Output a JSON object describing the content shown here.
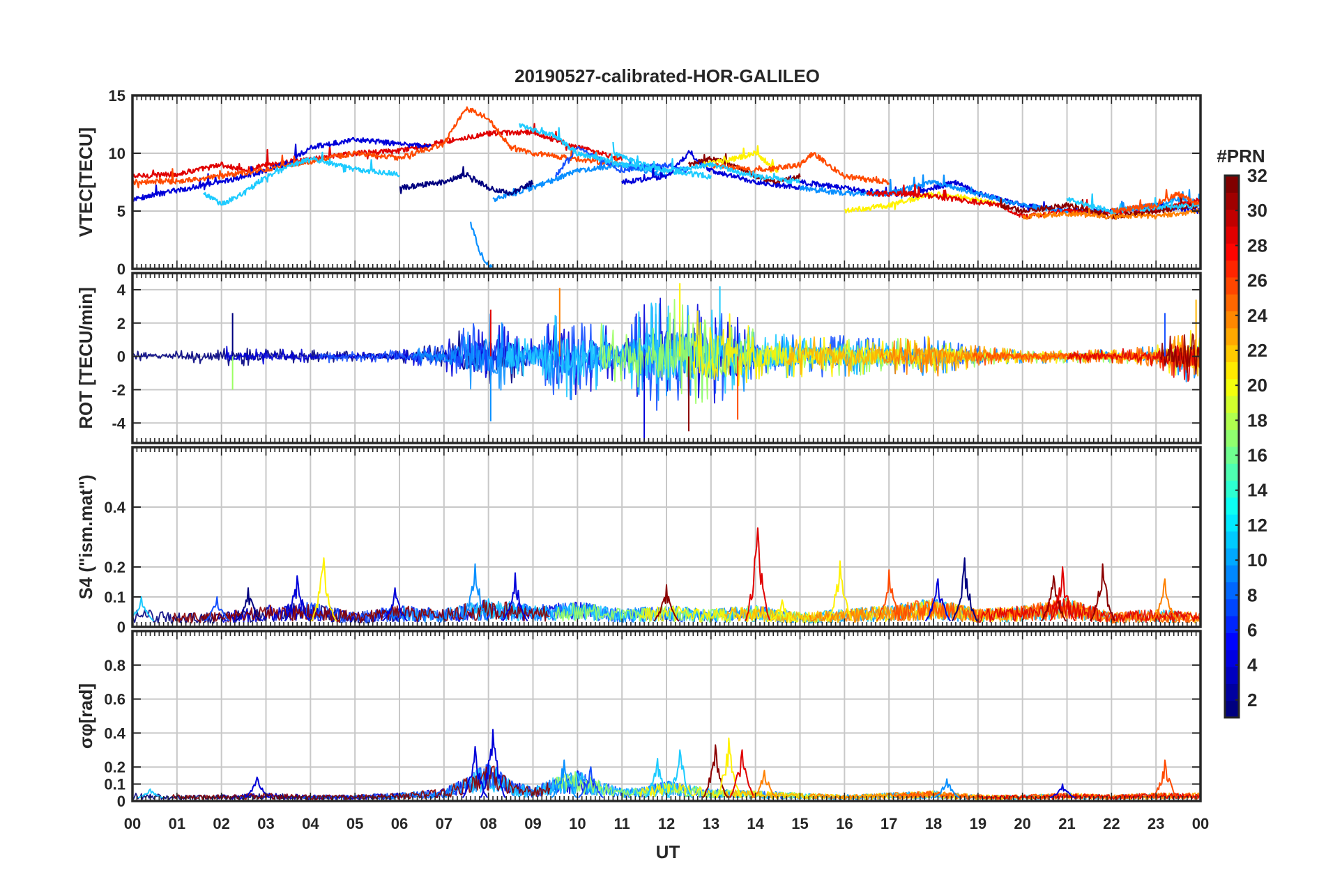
{
  "title": "20190527-calibrated-HOR-GALILEO",
  "xlabel": "UT",
  "x_ticks": [
    "00",
    "01",
    "02",
    "03",
    "04",
    "05",
    "06",
    "07",
    "08",
    "09",
    "10",
    "11",
    "12",
    "13",
    "14",
    "15",
    "16",
    "17",
    "18",
    "19",
    "20",
    "21",
    "22",
    "23",
    "00"
  ],
  "colorbar": {
    "label": "#PRN",
    "range": [
      1,
      32
    ],
    "ticks": [
      2,
      4,
      6,
      8,
      10,
      12,
      14,
      16,
      18,
      20,
      22,
      24,
      26,
      28,
      30,
      32
    ]
  },
  "series_colors": [
    "#00007f",
    "#0000d9",
    "#1550ff",
    "#0a90ff",
    "#1ecbff",
    "#9bff62",
    "#fff200",
    "#ffb400",
    "#ff8000",
    "#ff4a00",
    "#e00000",
    "#8b0000"
  ],
  "chart_data": [
    {
      "type": "line",
      "panel": "vtec",
      "ylabel": "VTEC[TECU]",
      "ylim": [
        0,
        15
      ],
      "yticks": [
        0,
        5,
        10,
        15
      ],
      "grid": true,
      "series": [
        {
          "color": "#e00000",
          "x": [
            0,
            1,
            2,
            2.5,
            3,
            4,
            5,
            6,
            7,
            8,
            9,
            10,
            11
          ],
          "y": [
            8,
            8.2,
            9,
            8.5,
            9,
            9.5,
            10,
            10.2,
            11,
            11.7,
            11.8,
            10.5,
            9.5
          ]
        },
        {
          "color": "#0000d9",
          "x": [
            0,
            1,
            2,
            3,
            3.5,
            4,
            5,
            6,
            6.7
          ],
          "y": [
            6,
            6.8,
            7.5,
            8.5,
            9.2,
            10.5,
            11.2,
            10.8,
            10.6
          ]
        },
        {
          "color": "#ff4a00",
          "x": [
            0,
            1,
            2,
            3,
            4,
            5,
            6,
            7,
            7.5,
            8,
            8.5,
            9,
            10,
            11
          ],
          "y": [
            7.5,
            7.6,
            8,
            8.6,
            9.3,
            10,
            9.6,
            10.8,
            13.9,
            13,
            10.5,
            10,
            9.5,
            9
          ]
        },
        {
          "color": "#1ecbff",
          "x": [
            1.6,
            2,
            2.5,
            3,
            4,
            5,
            6
          ],
          "y": [
            6.5,
            5.6,
            6.5,
            8,
            9.6,
            8.6,
            8.2
          ]
        },
        {
          "color": "#0a90ff",
          "x": [
            7.6,
            7.8,
            8,
            8.1
          ],
          "y": [
            4,
            1.5,
            0.3,
            0.2
          ]
        },
        {
          "color": "#0a90ff",
          "x": [
            8.1,
            9,
            10,
            11,
            12
          ],
          "y": [
            6,
            7,
            8.5,
            9,
            8
          ]
        },
        {
          "color": "#1550ff",
          "x": [
            9.5,
            10,
            10.5,
            11,
            11.5,
            12,
            12.5
          ],
          "y": [
            8,
            10.5,
            9.5,
            8.5,
            8.8,
            9,
            8.5
          ]
        },
        {
          "color": "#1ecbff",
          "x": [
            8.7,
            9,
            9.5,
            10,
            11,
            12,
            13
          ],
          "y": [
            12.5,
            12,
            11.5,
            10,
            9,
            8.5,
            8
          ]
        },
        {
          "color": "#00007f",
          "x": [
            6,
            7,
            7.5,
            8,
            8.5,
            9
          ],
          "y": [
            7,
            7.5,
            8.2,
            7,
            6.5,
            7.5
          ]
        },
        {
          "color": "#0000d9",
          "x": [
            11,
            12,
            12.5,
            13,
            14,
            15
          ],
          "y": [
            7.5,
            8,
            10,
            8.5,
            7.5,
            7
          ]
        },
        {
          "color": "#8b0000",
          "x": [
            12.5,
            13,
            13.5,
            14,
            14.5,
            15
          ],
          "y": [
            9,
            9.5,
            9,
            8,
            7.5,
            8
          ]
        },
        {
          "color": "#fff200",
          "x": [
            12.8,
            13.5,
            14,
            14.5
          ],
          "y": [
            9,
            9.5,
            10,
            8.5
          ]
        },
        {
          "color": "#ff4a00",
          "x": [
            13,
            14,
            15,
            15.3,
            16,
            17
          ],
          "y": [
            9,
            8.5,
            9,
            10,
            8,
            7.5
          ]
        },
        {
          "color": "#1ecbff",
          "x": [
            10.8,
            11.5,
            12,
            13,
            14,
            15
          ],
          "y": [
            10,
            9,
            8.5,
            9,
            8,
            7.5
          ]
        },
        {
          "color": "#0000d9",
          "x": [
            15,
            16,
            17,
            17.5,
            18,
            18.5,
            19,
            20,
            21,
            22,
            23,
            24
          ],
          "y": [
            7.5,
            7,
            6.5,
            6.5,
            7,
            7.5,
            6.5,
            5.5,
            5,
            5,
            5.5,
            5
          ]
        },
        {
          "color": "#0a90ff",
          "x": [
            15,
            16,
            17,
            18,
            19,
            20,
            21,
            22,
            23,
            23.5,
            24
          ],
          "y": [
            7,
            6.5,
            6.5,
            7.5,
            6.5,
            5.5,
            5,
            5,
            5.5,
            6,
            5.5
          ]
        },
        {
          "color": "#fff200",
          "x": [
            16,
            17,
            18,
            19,
            19.5
          ],
          "y": [
            5,
            5.5,
            6.5,
            6,
            5.5
          ]
        },
        {
          "color": "#e00000",
          "x": [
            16.5,
            17.5,
            18.5,
            19.5,
            20,
            21,
            22,
            23,
            24
          ],
          "y": [
            6.5,
            6.5,
            6,
            5.5,
            4.5,
            5,
            4.8,
            5,
            6
          ]
        },
        {
          "color": "#8b0000",
          "x": [
            19.5,
            20,
            21,
            22,
            23,
            24
          ],
          "y": [
            5.5,
            5,
            5.5,
            4.5,
            5,
            5.5
          ]
        },
        {
          "color": "#ff8000",
          "x": [
            20,
            21,
            22,
            23,
            24
          ],
          "y": [
            4.5,
            4.8,
            4.5,
            4.6,
            5
          ]
        },
        {
          "color": "#1ecbff",
          "x": [
            21,
            22,
            23,
            24
          ],
          "y": [
            6,
            5,
            5.3,
            5.5
          ]
        },
        {
          "color": "#ff4a00",
          "x": [
            22,
            23,
            23.5,
            24
          ],
          "y": [
            5,
            5.5,
            6.5,
            5.5
          ]
        }
      ]
    },
    {
      "type": "line",
      "panel": "rot",
      "ylabel": "ROT [TECU/min]",
      "ylim": [
        -5.2,
        5
      ],
      "yticks": [
        -4,
        -2,
        0,
        2,
        4
      ],
      "grid": true,
      "envelope": {
        "x": [
          0,
          1,
          2,
          3,
          4,
          5,
          6,
          7,
          7.5,
          8,
          9,
          9.5,
          10,
          11,
          11.5,
          12,
          12.5,
          13,
          13.5,
          14,
          15,
          16,
          17,
          18,
          19,
          20,
          21,
          22,
          23,
          23.5,
          24
        ],
        "amplitude": [
          0.3,
          0.3,
          0.6,
          0.5,
          0.4,
          0.3,
          0.4,
          0.8,
          1.8,
          2.5,
          1,
          2.5,
          2.5,
          1.5,
          3,
          3.5,
          3,
          3,
          2.5,
          1.5,
          1.2,
          1.2,
          1,
          1.2,
          0.6,
          0.4,
          0.4,
          0.4,
          0.6,
          1.5,
          1.5
        ]
      },
      "spikes": [
        {
          "x": 2.25,
          "y": 2.6
        },
        {
          "x": 2.25,
          "y": -2
        },
        {
          "x": 8.05,
          "y": 2.8
        },
        {
          "x": 8.05,
          "y": -3.9
        },
        {
          "x": 9.6,
          "y": 4.1
        },
        {
          "x": 11.5,
          "y": -5.1
        },
        {
          "x": 12.3,
          "y": 4.4
        },
        {
          "x": 12.5,
          "y": -4.5
        },
        {
          "x": 13.2,
          "y": 4.2
        },
        {
          "x": 13.6,
          "y": -3.8
        },
        {
          "x": 23.2,
          "y": 2.6
        },
        {
          "x": 23.9,
          "y": 3.4
        }
      ]
    },
    {
      "type": "line",
      "panel": "s4",
      "ylabel": "S4 (\"ism.mat\")",
      "ylim": [
        0,
        0.6
      ],
      "yticks": [
        0,
        0.1,
        0.2,
        0.4
      ],
      "grid": true,
      "baseline": {
        "x": [
          0,
          1,
          2,
          3,
          4,
          5,
          6,
          7,
          8,
          9,
          10,
          11,
          12,
          13,
          14,
          15,
          16,
          17,
          18,
          19,
          20,
          21,
          22,
          23,
          24
        ],
        "y": [
          0.05,
          0.04,
          0.04,
          0.06,
          0.07,
          0.04,
          0.06,
          0.05,
          0.08,
          0.06,
          0.07,
          0.05,
          0.06,
          0.05,
          0.06,
          0.04,
          0.05,
          0.06,
          0.08,
          0.05,
          0.06,
          0.08,
          0.04,
          0.05,
          0.04
        ]
      },
      "peaks": [
        {
          "x": 0.2,
          "y": 0.1,
          "color": "#1ecbff"
        },
        {
          "x": 1.9,
          "y": 0.1,
          "color": "#1550ff"
        },
        {
          "x": 2.6,
          "y": 0.13,
          "color": "#00007f"
        },
        {
          "x": 3.7,
          "y": 0.17,
          "color": "#0000d9"
        },
        {
          "x": 4.3,
          "y": 0.23,
          "color": "#fff200"
        },
        {
          "x": 5.9,
          "y": 0.13,
          "color": "#0000d9"
        },
        {
          "x": 7.7,
          "y": 0.21,
          "color": "#0a90ff"
        },
        {
          "x": 8.6,
          "y": 0.18,
          "color": "#0000d9"
        },
        {
          "x": 12.0,
          "y": 0.14,
          "color": "#8b0000"
        },
        {
          "x": 14.05,
          "y": 0.33,
          "color": "#e00000"
        },
        {
          "x": 14.6,
          "y": 0.09,
          "color": "#fff200"
        },
        {
          "x": 15.9,
          "y": 0.22,
          "color": "#fff200"
        },
        {
          "x": 17.0,
          "y": 0.19,
          "color": "#ff4a00"
        },
        {
          "x": 18.1,
          "y": 0.16,
          "color": "#0000d9"
        },
        {
          "x": 18.7,
          "y": 0.23,
          "color": "#00007f"
        },
        {
          "x": 20.7,
          "y": 0.17,
          "color": "#8b0000"
        },
        {
          "x": 20.9,
          "y": 0.2,
          "color": "#e00000"
        },
        {
          "x": 21.8,
          "y": 0.21,
          "color": "#8b0000"
        },
        {
          "x": 23.2,
          "y": 0.16,
          "color": "#ff8000"
        }
      ]
    },
    {
      "type": "line",
      "panel": "sigma_phi",
      "ylabel": "σφ[rad]",
      "ylim": [
        0,
        1
      ],
      "yticks": [
        0,
        0.1,
        0.2,
        0.4,
        0.6,
        0.8
      ],
      "grid": true,
      "baseline": {
        "x": [
          0,
          1,
          2,
          3,
          4,
          5,
          6,
          7,
          7.5,
          8,
          8.5,
          9,
          9.5,
          10,
          10.5,
          11,
          11.5,
          12,
          12.5,
          13,
          14,
          15,
          16,
          17,
          18,
          19,
          20,
          21,
          22,
          23,
          24
        ],
        "y": [
          0.04,
          0.03,
          0.03,
          0.04,
          0.03,
          0.03,
          0.04,
          0.06,
          0.12,
          0.2,
          0.1,
          0.07,
          0.12,
          0.15,
          0.1,
          0.06,
          0.07,
          0.1,
          0.08,
          0.06,
          0.05,
          0.04,
          0.03,
          0.04,
          0.05,
          0.03,
          0.03,
          0.04,
          0.03,
          0.04,
          0.04
        ]
      },
      "peaks": [
        {
          "x": 0.4,
          "y": 0.07,
          "color": "#1ecbff"
        },
        {
          "x": 2.8,
          "y": 0.14,
          "color": "#0000d9"
        },
        {
          "x": 7.7,
          "y": 0.32,
          "color": "#0000d9"
        },
        {
          "x": 8.1,
          "y": 0.42,
          "color": "#0000d9"
        },
        {
          "x": 9.7,
          "y": 0.24,
          "color": "#0a90ff"
        },
        {
          "x": 10.3,
          "y": 0.2,
          "color": "#1550ff"
        },
        {
          "x": 11.8,
          "y": 0.25,
          "color": "#1ecbff"
        },
        {
          "x": 12.3,
          "y": 0.3,
          "color": "#1ecbff"
        },
        {
          "x": 13.1,
          "y": 0.33,
          "color": "#8b0000"
        },
        {
          "x": 13.4,
          "y": 0.37,
          "color": "#fff200"
        },
        {
          "x": 13.7,
          "y": 0.3,
          "color": "#e00000"
        },
        {
          "x": 14.2,
          "y": 0.18,
          "color": "#ff8000"
        },
        {
          "x": 18.3,
          "y": 0.13,
          "color": "#0a90ff"
        },
        {
          "x": 20.9,
          "y": 0.1,
          "color": "#0000d9"
        },
        {
          "x": 23.2,
          "y": 0.24,
          "color": "#ff4a00"
        }
      ]
    }
  ]
}
